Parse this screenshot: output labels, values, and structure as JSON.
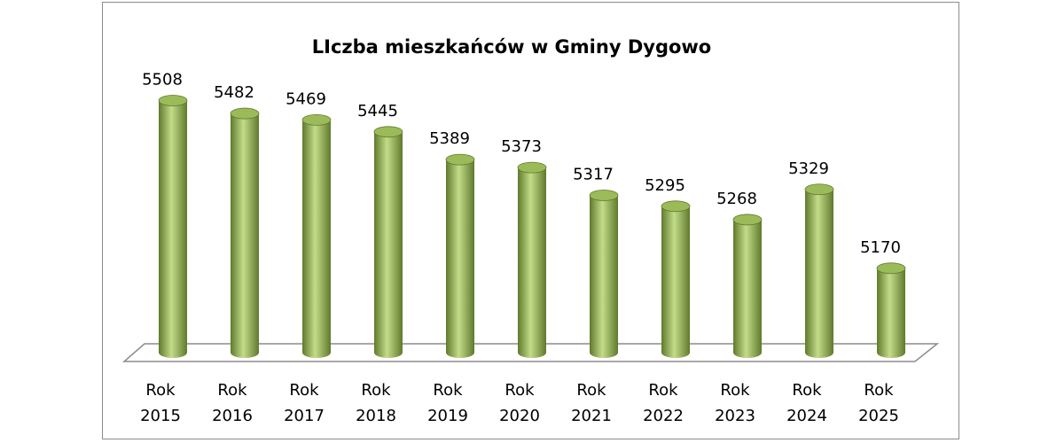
{
  "chart_data": {
    "type": "bar",
    "style": "3d-cylinder",
    "title": "LIczba mieszkańców w Gminy Dygowo",
    "xlabel": "",
    "ylabel": "",
    "categories": [
      [
        "Rok",
        "2015"
      ],
      [
        "Rok",
        "2016"
      ],
      [
        "Rok",
        "2017"
      ],
      [
        "Rok",
        "2018"
      ],
      [
        "Rok",
        "2019"
      ],
      [
        "Rok",
        "2020"
      ],
      [
        "Rok",
        "2021"
      ],
      [
        "Rok",
        "2022"
      ],
      [
        "Rok",
        "2023"
      ],
      [
        "Rok",
        "2024"
      ],
      [
        "Rok",
        "2025"
      ]
    ],
    "values": [
      5508,
      5482,
      5469,
      5445,
      5389,
      5373,
      5317,
      5295,
      5268,
      5329,
      5170
    ],
    "ylim": [
      5000,
      5550
    ],
    "grid": false,
    "legend": "none",
    "colors": {
      "bar_fill": "#9bbb59",
      "bar_dark": "#5f7a2c",
      "bar_light": "#c3dc8a",
      "floor_stroke": "#8c8c8c",
      "frame_border": "#8c8c8c"
    }
  }
}
